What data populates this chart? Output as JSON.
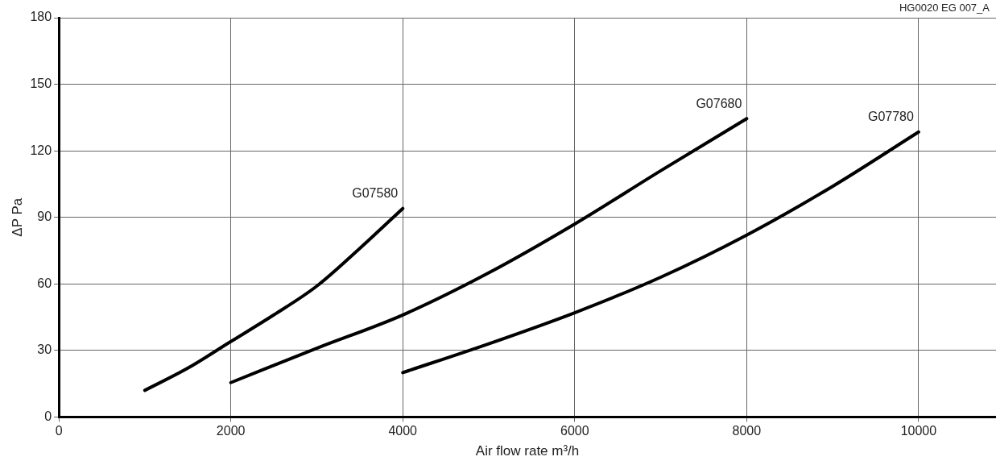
{
  "chart_data": {
    "type": "line",
    "xlabel": "Air flow rate m³/h",
    "ylabel": "ΔP Pa",
    "annotations": [
      "HG0020 EG 007_A"
    ],
    "xlim": [
      0,
      10900
    ],
    "xticks": [
      0,
      2000,
      4000,
      6000,
      8000,
      10000
    ],
    "ylim": [
      0,
      180
    ],
    "yticks": [
      0,
      30,
      60,
      90,
      120,
      150,
      180
    ],
    "grid": true,
    "legend": false,
    "marker": "none",
    "line_style": "solid",
    "series": [
      {
        "name": "G07580",
        "color": "#000000",
        "x": [
          1000,
          1500,
          2000,
          2500,
          3000,
          3500,
          4000
        ],
        "values": [
          12,
          22,
          34,
          46,
          59,
          76,
          94
        ]
      },
      {
        "name": "G07680",
        "color": "#000000",
        "x": [
          2000,
          3000,
          4000,
          5000,
          6000,
          7000,
          8000
        ],
        "values": [
          15.5,
          31,
          46,
          65,
          87,
          111,
          134.5
        ]
      },
      {
        "name": "G07780",
        "color": "#000000",
        "x": [
          4000,
          5000,
          6000,
          7000,
          8000,
          9000,
          10000
        ],
        "values": [
          20,
          33,
          47,
          63,
          82,
          104,
          128.5
        ]
      }
    ]
  }
}
